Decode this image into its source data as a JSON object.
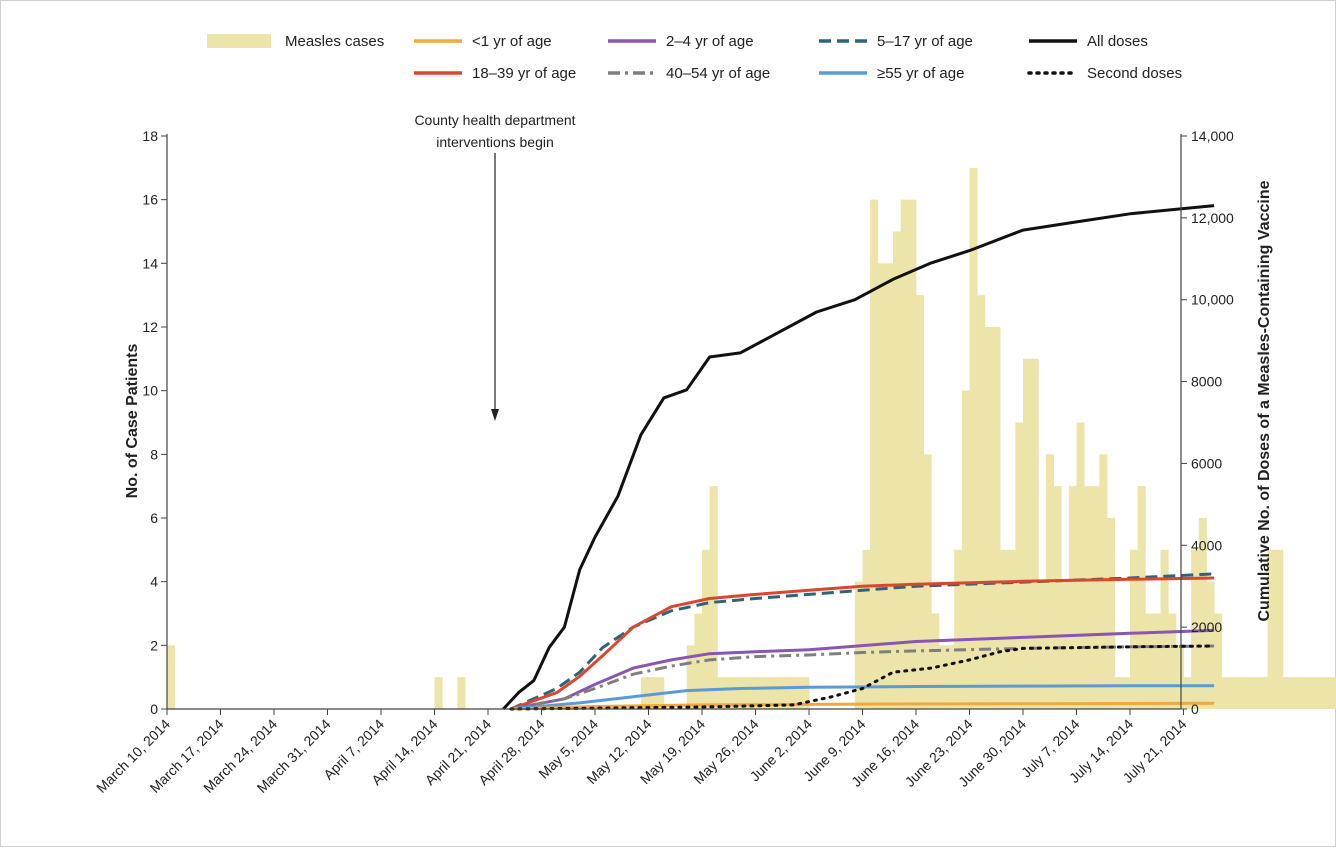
{
  "chart_data": {
    "type": "bar",
    "title": "",
    "xlabel": "",
    "ylabel": "No. of Case Patients",
    "ylabel_right": "Cumulative No. of Doses of a Measles-Containing Vaccine",
    "ylim": [
      0,
      18
    ],
    "ylim_right": [
      0,
      14000
    ],
    "y_ticks": [
      "0",
      "2",
      "4",
      "6",
      "8",
      "10",
      "12",
      "14",
      "16",
      "18"
    ],
    "y_ticks_right": [
      "0",
      "2000",
      "4000",
      "6000",
      "8000",
      "10,000",
      "12,000",
      "14,000"
    ],
    "x_ticks": [
      "March 10, 2014",
      "March 17, 2014",
      "March 24, 2014",
      "March 31, 2014",
      "April 7, 2014",
      "April 14, 2014",
      "April 21, 2014",
      "April 28, 2014",
      "May 5, 2014",
      "May 12, 2014",
      "May 19, 2014",
      "May 26, 2014",
      "June 2, 2014",
      "June 9, 2014",
      "June 16, 2014",
      "June 23, 2014",
      "June 30, 2014",
      "July 7, 2014",
      "July 14, 2014",
      "July 21, 2014"
    ],
    "x_start": "March 10, 2014",
    "annotation": {
      "lines": [
        "County health department",
        "interventions begin"
      ],
      "date": "April 24, 2014"
    },
    "legend": [
      {
        "label": "Measles cases",
        "style": "bar",
        "color": "#ece4a8"
      },
      {
        "label": "<1 yr of age",
        "style": "solid",
        "color": "#f2a93b"
      },
      {
        "label": "2–4 yr of age",
        "style": "solid",
        "color": "#8a56b3"
      },
      {
        "label": "5–17 yr of age",
        "style": "dashed",
        "color": "#2f6378"
      },
      {
        "label": "All doses",
        "style": "solid",
        "color": "#111111"
      },
      {
        "label": "18–39 yr of age",
        "style": "solid",
        "color": "#d9472f"
      },
      {
        "label": "40–54 yr of age",
        "style": "dashdot",
        "color": "#7f7f7f"
      },
      {
        "label": "≥55 yr of age",
        "style": "solid",
        "color": "#5b9bd5"
      },
      {
        "label": "Second doses",
        "style": "dotted",
        "color": "#111111"
      }
    ],
    "cases": {
      "name": "Measles cases",
      "daily_values": [
        2,
        0,
        0,
        0,
        0,
        0,
        0,
        0,
        0,
        0,
        0,
        0,
        0,
        0,
        0,
        0,
        0,
        0,
        0,
        0,
        0,
        0,
        0,
        0,
        0,
        0,
        0,
        0,
        0,
        0,
        0,
        0,
        0,
        0,
        0,
        1,
        0,
        0,
        1,
        0,
        0,
        0,
        0,
        0,
        0,
        0,
        0,
        0,
        0,
        0,
        0,
        0,
        0,
        0,
        0,
        0,
        0,
        0,
        0,
        0,
        0,
        0,
        1,
        1,
        1,
        0,
        0,
        0,
        2,
        3,
        5,
        7,
        1,
        1,
        1,
        1,
        1,
        1,
        1,
        1,
        1,
        1,
        1,
        1,
        0,
        0,
        0,
        0,
        0,
        0,
        4,
        5,
        16,
        14,
        14,
        15,
        16,
        16,
        13,
        8,
        3,
        2,
        2,
        5,
        10,
        17,
        13,
        12,
        12,
        5,
        5,
        9,
        11,
        11,
        4,
        8,
        7,
        4,
        7,
        9,
        7,
        7,
        8,
        6,
        1,
        1,
        5,
        7,
        3,
        3,
        5,
        3,
        2,
        1,
        5,
        6,
        4,
        3,
        1,
        1,
        1,
        1,
        1,
        1,
        5,
        5,
        1,
        1,
        1,
        1,
        1,
        1,
        1,
        1,
        1,
        1,
        1,
        1,
        1,
        1,
        1,
        1,
        1,
        1,
        1,
        1,
        1,
        2,
        2,
        0,
        0,
        1,
        1,
        0,
        0,
        0,
        0,
        0,
        0,
        0,
        1,
        1,
        1,
        0,
        0,
        0,
        0,
        0,
        0,
        0,
        0,
        0,
        0,
        0,
        0,
        0,
        0,
        0
      ]
    },
    "series": [
      {
        "name": "All doses",
        "color": "#111111",
        "style": "solid",
        "points": [
          [
            "April 23, 2014",
            0
          ],
          [
            "April 25, 2014",
            400
          ],
          [
            "April 27, 2014",
            700
          ],
          [
            "April 29, 2014",
            1500
          ],
          [
            "May 1, 2014",
            2000
          ],
          [
            "May 3, 2014",
            3400
          ],
          [
            "May 5, 2014",
            4200
          ],
          [
            "May 8, 2014",
            5200
          ],
          [
            "May 11, 2014",
            6700
          ],
          [
            "May 14, 2014",
            7600
          ],
          [
            "May 17, 2014",
            7800
          ],
          [
            "May 20, 2014",
            8600
          ],
          [
            "May 24, 2014",
            8700
          ],
          [
            "May 28, 2014",
            9100
          ],
          [
            "June 3, 2014",
            9700
          ],
          [
            "June 8, 2014",
            10000
          ],
          [
            "June 13, 2014",
            10500
          ],
          [
            "June 18, 2014",
            10900
          ],
          [
            "June 23, 2014",
            11200
          ],
          [
            "June 30, 2014",
            11700
          ],
          [
            "July 7, 2014",
            11900
          ],
          [
            "July 14, 2014",
            12100
          ],
          [
            "July 25, 2014",
            12300
          ]
        ]
      },
      {
        "name": "5–17 yr of age",
        "color": "#2f6378",
        "style": "dashed",
        "points": [
          [
            "April 24, 2014",
            0
          ],
          [
            "April 30, 2014",
            500
          ],
          [
            "May 3, 2014",
            900
          ],
          [
            "May 6, 2014",
            1500
          ],
          [
            "May 10, 2014",
            2000
          ],
          [
            "May 15, 2014",
            2400
          ],
          [
            "May 20, 2014",
            2600
          ],
          [
            "May 26, 2014",
            2700
          ],
          [
            "June 2, 2014",
            2800
          ],
          [
            "June 9, 2014",
            2900
          ],
          [
            "June 16, 2014",
            3000
          ],
          [
            "June 30, 2014",
            3100
          ],
          [
            "July 14, 2014",
            3200
          ],
          [
            "July 25, 2014",
            3300
          ]
        ]
      },
      {
        "name": "18–39 yr of age",
        "color": "#d9472f",
        "style": "solid",
        "points": [
          [
            "April 24, 2014",
            0
          ],
          [
            "April 30, 2014",
            400
          ],
          [
            "May 3, 2014",
            800
          ],
          [
            "May 6, 2014",
            1300
          ],
          [
            "May 10, 2014",
            2000
          ],
          [
            "May 15, 2014",
            2500
          ],
          [
            "May 20, 2014",
            2700
          ],
          [
            "May 26, 2014",
            2800
          ],
          [
            "June 2, 2014",
            2900
          ],
          [
            "June 9, 2014",
            3000
          ],
          [
            "June 16, 2014",
            3050
          ],
          [
            "June 30, 2014",
            3120
          ],
          [
            "July 14, 2014",
            3170
          ],
          [
            "July 25, 2014",
            3200
          ]
        ]
      },
      {
        "name": "2–4 yr of age",
        "color": "#8a56b3",
        "style": "solid",
        "points": [
          [
            "April 24, 2014",
            0
          ],
          [
            "May 1, 2014",
            250
          ],
          [
            "May 5, 2014",
            600
          ],
          [
            "May 10, 2014",
            1000
          ],
          [
            "May 15, 2014",
            1200
          ],
          [
            "May 20, 2014",
            1350
          ],
          [
            "May 26, 2014",
            1400
          ],
          [
            "June 2, 2014",
            1450
          ],
          [
            "June 9, 2014",
            1550
          ],
          [
            "June 16, 2014",
            1650
          ],
          [
            "June 30, 2014",
            1750
          ],
          [
            "July 14, 2014",
            1850
          ],
          [
            "July 25, 2014",
            1920
          ]
        ]
      },
      {
        "name": "40–54 yr of age",
        "color": "#7f7f7f",
        "style": "dashdot",
        "points": [
          [
            "April 24, 2014",
            0
          ],
          [
            "May 1, 2014",
            250
          ],
          [
            "May 5, 2014",
            500
          ],
          [
            "May 10, 2014",
            850
          ],
          [
            "May 15, 2014",
            1050
          ],
          [
            "May 20, 2014",
            1200
          ],
          [
            "May 26, 2014",
            1280
          ],
          [
            "June 2, 2014",
            1320
          ],
          [
            "June 9, 2014",
            1380
          ],
          [
            "June 16, 2014",
            1420
          ],
          [
            "June 30, 2014",
            1480
          ],
          [
            "July 14, 2014",
            1520
          ],
          [
            "July 25, 2014",
            1540
          ]
        ]
      },
      {
        "name": "≥55 yr of age",
        "color": "#5b9bd5",
        "style": "solid",
        "points": [
          [
            "April 24, 2014",
            0
          ],
          [
            "May 3, 2014",
            150
          ],
          [
            "May 10, 2014",
            300
          ],
          [
            "May 17, 2014",
            450
          ],
          [
            "May 24, 2014",
            500
          ],
          [
            "June 2, 2014",
            530
          ],
          [
            "June 16, 2014",
            550
          ],
          [
            "June 30, 2014",
            560
          ],
          [
            "July 14, 2014",
            570
          ],
          [
            "July 25, 2014",
            570
          ]
        ]
      },
      {
        "name": "<1 yr of age",
        "color": "#f2a93b",
        "style": "solid",
        "points": [
          [
            "April 24, 2014",
            0
          ],
          [
            "May 5, 2014",
            60
          ],
          [
            "May 19, 2014",
            100
          ],
          [
            "June 9, 2014",
            120
          ],
          [
            "June 30, 2014",
            130
          ],
          [
            "July 25, 2014",
            140
          ]
        ]
      },
      {
        "name": "Second doses",
        "color": "#111111",
        "style": "dotted",
        "points": [
          [
            "April 24, 2014",
            0
          ],
          [
            "May 5, 2014",
            20
          ],
          [
            "May 19, 2014",
            50
          ],
          [
            "May 31, 2014",
            100
          ],
          [
            "June 5, 2014",
            300
          ],
          [
            "June 9, 2014",
            500
          ],
          [
            "June 13, 2014",
            900
          ],
          [
            "June 18, 2014",
            1000
          ],
          [
            "June 23, 2014",
            1200
          ],
          [
            "June 27, 2014",
            1400
          ],
          [
            "June 30, 2014",
            1480
          ],
          [
            "July 14, 2014",
            1520
          ],
          [
            "July 25, 2014",
            1540
          ]
        ]
      }
    ]
  }
}
